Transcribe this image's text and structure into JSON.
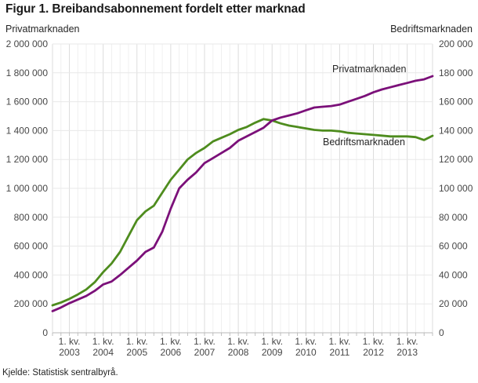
{
  "title": "Figur 1. Breibandsabonnement fordelt etter marknad",
  "source": "Kjelde: Statistisk sentralbyrå.",
  "chart_data": {
    "type": "line",
    "title": "Figur 1. Breibandsabonnement fordelt etter marknad",
    "grid": true,
    "legend": "inline-labels",
    "x_axis": {
      "tick_prefix": "1. kv.",
      "tick_years": [
        "2003",
        "2004",
        "2005",
        "2006",
        "2007",
        "2008",
        "2009",
        "2010",
        "2011",
        "2012",
        "2013"
      ],
      "quarters_start": "3. kv. 2002",
      "quarters_end": "4. kv. 2013"
    },
    "left_axis": {
      "title": "Privatmarknaden",
      "max": 2000000,
      "min": 0,
      "ticks": [
        "2 000 000",
        "1 800 000",
        "1 600 000",
        "1 400 000",
        "1 200 000",
        "1 000 000",
        "800 000",
        "600 000",
        "400 000",
        "200 000",
        "0"
      ]
    },
    "right_axis": {
      "title": "Bedriftsmarknaden",
      "max": 200000,
      "min": 0,
      "ticks": [
        "200 000",
        "180 000",
        "160 000",
        "140 000",
        "120 000",
        "100 000",
        "80 000",
        "60 000",
        "40 000",
        "20 000",
        "0"
      ]
    },
    "series": [
      {
        "name": "Privatmarknaden",
        "axis": "left",
        "color": "#7b1079",
        "values": [
          150000,
          175000,
          205000,
          230000,
          255000,
          290000,
          335000,
          355000,
          400000,
          450000,
          500000,
          560000,
          590000,
          700000,
          860000,
          1000000,
          1060000,
          1110000,
          1175000,
          1210000,
          1245000,
          1280000,
          1330000,
          1360000,
          1390000,
          1420000,
          1470000,
          1490000,
          1505000,
          1520000,
          1540000,
          1560000,
          1565000,
          1570000,
          1580000,
          1600000,
          1620000,
          1640000,
          1665000,
          1685000,
          1700000,
          1715000,
          1730000,
          1745000,
          1755000,
          1777000
        ]
      },
      {
        "name": "Bedriftsmarknaden",
        "axis": "right",
        "color": "#4e8c1e",
        "values": [
          19000,
          21000,
          23500,
          26500,
          30000,
          35000,
          42000,
          48000,
          56000,
          67000,
          78000,
          84000,
          88000,
          97000,
          106000,
          113000,
          120000,
          124500,
          128000,
          132500,
          135000,
          137500,
          140500,
          142500,
          145500,
          148000,
          147000,
          145000,
          143500,
          142500,
          141500,
          140500,
          140000,
          140000,
          139500,
          138500,
          138000,
          137500,
          137000,
          136500,
          136000,
          136000,
          136000,
          135500,
          133500,
          136400
        ]
      }
    ]
  }
}
